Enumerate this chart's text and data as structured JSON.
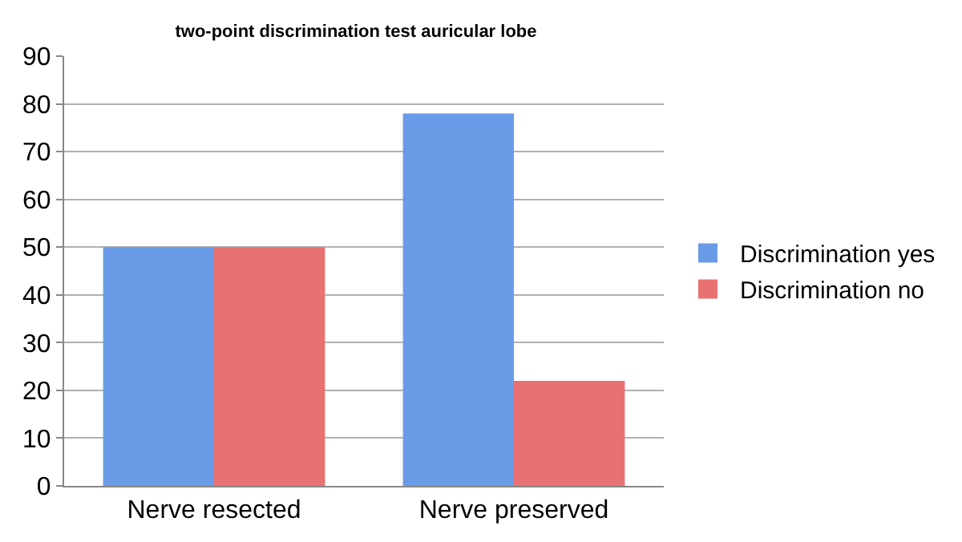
{
  "chart_data": {
    "type": "bar",
    "title": "two-point discrimination test auricular lobe",
    "categories": [
      "Nerve resected",
      "Nerve preserved"
    ],
    "series": [
      {
        "name": "Discrimination yes",
        "color": "#6a9be6",
        "values": [
          50,
          78
        ]
      },
      {
        "name": "Discrimination no",
        "color": "#e87272",
        "values": [
          50,
          22
        ]
      }
    ],
    "ylim": [
      0,
      90
    ],
    "yticks": [
      0,
      10,
      20,
      30,
      40,
      50,
      60,
      70,
      80,
      90
    ],
    "grid": "y",
    "legend": "right"
  }
}
